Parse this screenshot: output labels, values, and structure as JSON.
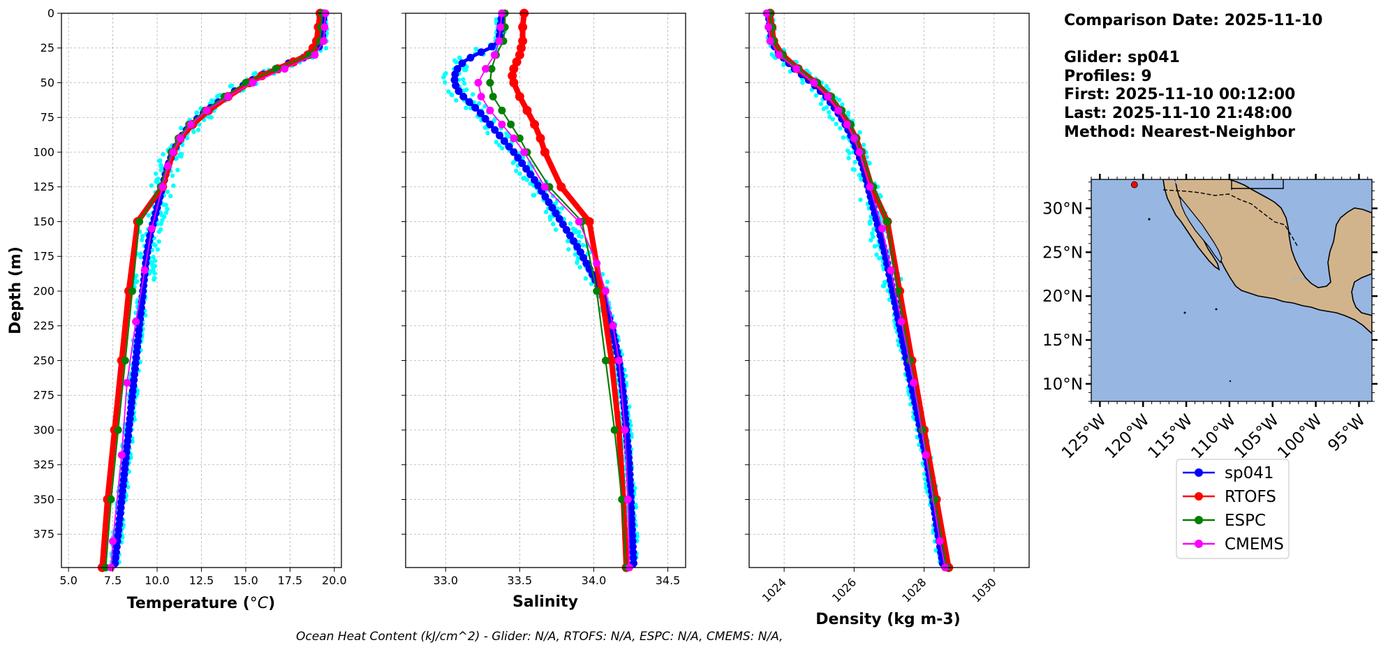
{
  "info": {
    "comparison_date": "Comparison Date: 2025-11-10",
    "glider": "Glider: sp041",
    "profiles": "Profiles: 9",
    "first": "First: 2025-11-10 00:12:00",
    "last": "Last: 2025-11-10 21:48:00",
    "method": "Method: Nearest-Neighbor"
  },
  "footer": "Ocean Heat Content (kJ/cm^2) - Glider: N/A,  RTOFS: N/A,  ESPC: N/A,  CMEMS: N/A,",
  "colors": {
    "sp041": "#0000ff",
    "RTOFS": "#ff0000",
    "ESPC": "#008000",
    "CMEMS": "#ff00ff",
    "raw": "#00ffff",
    "ocean": "#97b6e1",
    "land": "#d2b48c"
  },
  "chart_data": [
    {
      "id": "temperature",
      "type": "line",
      "xlabel": "Temperature (°C)",
      "ylabel": "Depth (m)",
      "xlim": [
        4.6,
        20.4
      ],
      "ylim": [
        399,
        0
      ],
      "xticks": [
        "5.0",
        "7.5",
        "10.0",
        "12.5",
        "15.0",
        "17.5",
        "20.0"
      ],
      "xtick_values": [
        5,
        7.5,
        10,
        12.5,
        15,
        17.5,
        20
      ],
      "yticks": [
        "0",
        "25",
        "50",
        "75",
        "100",
        "125",
        "150",
        "175",
        "200",
        "225",
        "250",
        "275",
        "300",
        "325",
        "350",
        "375"
      ],
      "ytick_values": [
        0,
        25,
        50,
        75,
        100,
        125,
        150,
        175,
        200,
        225,
        250,
        275,
        300,
        325,
        350,
        375
      ],
      "grid": true,
      "series": [
        {
          "name": "sp041",
          "depth": [
            0,
            10,
            20,
            25,
            30,
            35,
            40,
            45,
            50,
            60,
            70,
            80,
            90,
            100,
            110,
            120,
            130,
            140,
            150,
            160,
            175,
            200,
            225,
            250,
            275,
            300,
            325,
            350,
            375,
            399
          ],
          "values": [
            19.4,
            19.35,
            19.3,
            19.1,
            18.7,
            17.6,
            16.7,
            15.8,
            15.1,
            13.9,
            12.8,
            11.9,
            11.3,
            10.9,
            10.6,
            10.4,
            10.2,
            10.0,
            9.8,
            9.6,
            9.4,
            9.2,
            9.0,
            8.8,
            8.6,
            8.4,
            8.2,
            8.0,
            7.8,
            7.6
          ]
        },
        {
          "name": "RTOFS",
          "depth": [
            0,
            10,
            20,
            25,
            30,
            35,
            40,
            45,
            50,
            60,
            70,
            80,
            90,
            100,
            125,
            150,
            200,
            250,
            300,
            350,
            399
          ],
          "values": [
            19.2,
            19.1,
            19.0,
            18.8,
            18.5,
            17.7,
            16.8,
            15.9,
            15.2,
            14.0,
            12.9,
            12.0,
            11.3,
            10.9,
            10.3,
            8.9,
            8.4,
            8.0,
            7.6,
            7.2,
            6.9
          ]
        },
        {
          "name": "ESPC",
          "depth": [
            0,
            10,
            20,
            30,
            40,
            50,
            60,
            70,
            80,
            90,
            100,
            125,
            150,
            200,
            250,
            300,
            350,
            399
          ],
          "values": [
            19.3,
            19.25,
            19.2,
            18.6,
            16.7,
            15.0,
            13.8,
            12.7,
            11.8,
            11.2,
            10.8,
            10.2,
            9.0,
            8.6,
            8.2,
            7.8,
            7.4,
            7.1
          ]
        },
        {
          "name": "CMEMS",
          "depth": [
            0,
            10,
            20,
            30,
            40,
            50,
            60,
            70,
            80,
            90,
            100,
            110,
            125,
            155,
            185,
            222,
            266,
            318,
            380,
            399
          ],
          "values": [
            19.5,
            19.45,
            19.4,
            18.9,
            17.2,
            15.4,
            14.0,
            12.8,
            11.9,
            11.3,
            10.9,
            10.6,
            10.3,
            9.7,
            9.3,
            8.8,
            8.3,
            8.0,
            7.5,
            7.4
          ]
        }
      ]
    },
    {
      "id": "salinity",
      "type": "line",
      "xlabel": "Salinity",
      "xlim": [
        32.73,
        34.62
      ],
      "ylim": [
        399,
        0
      ],
      "xticks": [
        "33.0",
        "33.5",
        "34.0",
        "34.5"
      ],
      "xtick_values": [
        33.0,
        33.5,
        34.0,
        34.5
      ],
      "grid": true,
      "series": [
        {
          "name": "sp041",
          "depth": [
            0,
            10,
            20,
            25,
            30,
            35,
            40,
            45,
            50,
            55,
            60,
            70,
            80,
            90,
            100,
            110,
            120,
            130,
            140,
            150,
            160,
            170,
            180,
            190,
            200,
            225,
            250,
            275,
            300,
            325,
            350,
            375,
            399
          ],
          "values": [
            33.38,
            33.37,
            33.36,
            33.3,
            33.2,
            33.12,
            33.08,
            33.06,
            33.06,
            33.08,
            33.12,
            33.22,
            33.3,
            33.38,
            33.46,
            33.53,
            33.6,
            33.66,
            33.72,
            33.78,
            33.84,
            33.9,
            33.95,
            34.0,
            34.05,
            34.12,
            34.17,
            34.2,
            34.22,
            34.24,
            34.25,
            34.26,
            34.27
          ]
        },
        {
          "name": "RTOFS",
          "depth": [
            0,
            10,
            20,
            25,
            30,
            35,
            40,
            45,
            50,
            60,
            70,
            80,
            90,
            100,
            125,
            150,
            200,
            250,
            300,
            350,
            399
          ],
          "values": [
            33.53,
            33.52,
            33.52,
            33.51,
            33.5,
            33.48,
            33.46,
            33.45,
            33.46,
            33.5,
            33.55,
            33.6,
            33.64,
            33.67,
            33.78,
            33.97,
            34.05,
            34.12,
            34.17,
            34.2,
            34.22
          ]
        },
        {
          "name": "ESPC",
          "depth": [
            0,
            10,
            20,
            30,
            40,
            50,
            60,
            70,
            80,
            90,
            100,
            125,
            150,
            200,
            250,
            300,
            350,
            399
          ],
          "values": [
            33.4,
            33.4,
            33.39,
            33.34,
            33.31,
            33.3,
            33.32,
            33.38,
            33.44,
            33.5,
            33.55,
            33.7,
            33.92,
            34.02,
            34.08,
            34.14,
            34.19,
            34.22
          ]
        },
        {
          "name": "CMEMS",
          "depth": [
            0,
            10,
            20,
            30,
            40,
            50,
            60,
            70,
            80,
            90,
            100,
            125,
            150,
            180,
            200,
            225,
            250,
            300,
            350,
            399
          ],
          "values": [
            33.38,
            33.37,
            33.36,
            33.33,
            33.27,
            33.22,
            33.24,
            33.3,
            33.38,
            33.46,
            33.53,
            33.67,
            33.9,
            34.02,
            34.08,
            34.13,
            34.17,
            34.21,
            34.23,
            34.24
          ]
        }
      ]
    },
    {
      "id": "density",
      "type": "line",
      "xlabel": "Density (kg m-3)",
      "xlim": [
        1023.0,
        1031.0
      ],
      "ylim": [
        399,
        0
      ],
      "xticks": [
        "1024",
        "1026",
        "1028",
        "1030"
      ],
      "xtick_values": [
        1024,
        1026,
        1028,
        1030
      ],
      "grid": true,
      "series": [
        {
          "name": "sp041",
          "depth": [
            0,
            10,
            20,
            25,
            30,
            35,
            40,
            45,
            50,
            60,
            70,
            80,
            90,
            100,
            110,
            120,
            130,
            140,
            150,
            175,
            200,
            225,
            250,
            275,
            300,
            325,
            350,
            375,
            399
          ],
          "values": [
            1023.55,
            1023.6,
            1023.65,
            1023.75,
            1023.9,
            1024.1,
            1024.3,
            1024.55,
            1024.8,
            1025.2,
            1025.5,
            1025.75,
            1025.95,
            1026.1,
            1026.25,
            1026.35,
            1026.45,
            1026.55,
            1026.65,
            1026.9,
            1027.1,
            1027.3,
            1027.5,
            1027.7,
            1027.9,
            1028.1,
            1028.25,
            1028.4,
            1028.55
          ]
        },
        {
          "name": "RTOFS",
          "depth": [
            0,
            10,
            20,
            30,
            40,
            50,
            60,
            70,
            80,
            90,
            100,
            125,
            150,
            200,
            250,
            300,
            350,
            399
          ],
          "values": [
            1023.6,
            1023.65,
            1023.7,
            1023.95,
            1024.4,
            1024.9,
            1025.3,
            1025.6,
            1025.85,
            1026.05,
            1026.2,
            1026.5,
            1026.95,
            1027.3,
            1027.65,
            1028.0,
            1028.35,
            1028.7
          ]
        },
        {
          "name": "ESPC",
          "depth": [
            0,
            10,
            20,
            30,
            40,
            50,
            60,
            70,
            80,
            90,
            100,
            125,
            150,
            200,
            250,
            300,
            350,
            399
          ],
          "values": [
            1023.6,
            1023.65,
            1023.7,
            1023.95,
            1024.4,
            1024.95,
            1025.35,
            1025.65,
            1025.9,
            1026.05,
            1026.2,
            1026.55,
            1026.95,
            1027.25,
            1027.6,
            1027.95,
            1028.3,
            1028.65
          ]
        },
        {
          "name": "CMEMS",
          "depth": [
            0,
            10,
            20,
            30,
            40,
            50,
            60,
            70,
            80,
            90,
            100,
            125,
            155,
            185,
            222,
            266,
            318,
            380,
            399
          ],
          "values": [
            1023.5,
            1023.55,
            1023.6,
            1023.85,
            1024.35,
            1024.85,
            1025.25,
            1025.55,
            1025.8,
            1026.0,
            1026.15,
            1026.45,
            1026.8,
            1027.05,
            1027.35,
            1027.7,
            1028.05,
            1028.45,
            1028.6
          ]
        }
      ]
    }
  ],
  "map": {
    "xticks": [
      "125°W",
      "120°W",
      "115°W",
      "110°W",
      "105°W",
      "100°W",
      "95°W"
    ],
    "xtick_values": [
      -125,
      -120,
      -115,
      -110,
      -105,
      -100,
      -95
    ],
    "yticks": [
      "30°N",
      "25°N",
      "20°N",
      "15°N",
      "10°N"
    ],
    "ytick_values": [
      30,
      25,
      20,
      15,
      10
    ],
    "lon_range": [
      -126,
      -93.5
    ],
    "lat_range": [
      8,
      33.3
    ],
    "glider_position": [
      -121,
      32.7
    ]
  },
  "legend": [
    "sp041",
    "RTOFS",
    "ESPC",
    "CMEMS"
  ]
}
